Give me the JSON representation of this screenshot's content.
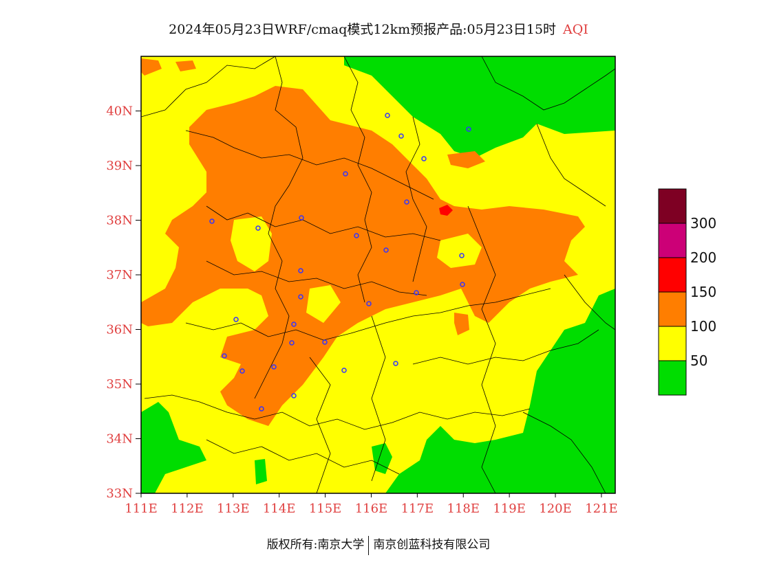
{
  "title": {
    "main": "2024年05月23日WRF/cmaq模式12km预报产品:05月23日15时",
    "variable": "AQI"
  },
  "map": {
    "lat_labels": [
      "40N",
      "39N",
      "38N",
      "37N",
      "36N",
      "35N",
      "34N",
      "33N"
    ],
    "lon_labels": [
      "111E",
      "112E",
      "113E",
      "114E",
      "115E",
      "116E",
      "117E",
      "118E",
      "119E",
      "120E",
      "121E"
    ],
    "lat_range": [
      33,
      41
    ],
    "lon_range": [
      111,
      121.3
    ]
  },
  "legend": {
    "classes": [
      {
        "color": "#00DD00",
        "label": "50"
      },
      {
        "color": "#FFFF00",
        "label": "100"
      },
      {
        "color": "#FF7E00",
        "label": "150"
      },
      {
        "color": "#FF0000",
        "label": "200"
      },
      {
        "color": "#CC0077",
        "label": "300"
      },
      {
        "color": "#7E0023",
        "label": ""
      }
    ]
  },
  "footer": {
    "left": "版权所有:南京大学",
    "right": "南京创蓝科技有限公司"
  },
  "colors": {
    "good": "#00DD00",
    "moderate": "#FFFF00",
    "unhealthy_sensitive": "#FF7E00",
    "unhealthy": "#FF0000",
    "axis_label": "#e04040"
  }
}
